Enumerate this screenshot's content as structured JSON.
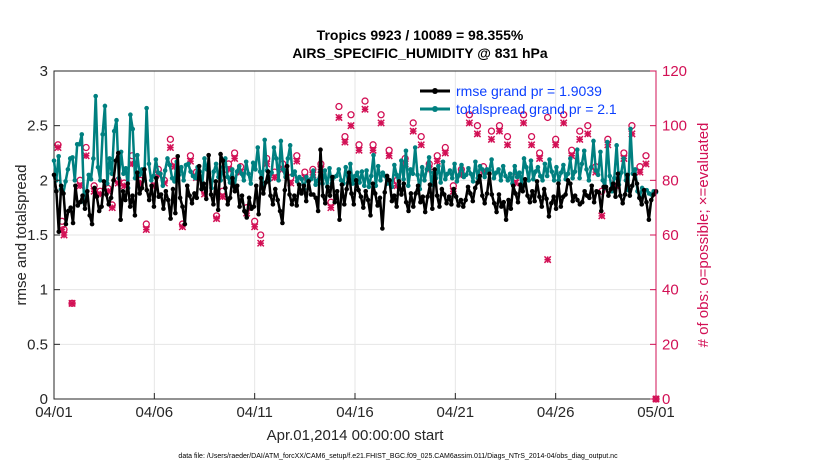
{
  "chart_data": {
    "type": "line",
    "title": "Tropics 9923 / 10089 = 98.355%",
    "subtitle": "AIRS_SPECIFIC_HUMIDITY @ 831 hPa",
    "xlabel": "Apr.01,2014 00:00:00 start",
    "ylabel": "rmse and totalspread",
    "ylabel_right": "# of obs: o=possible; ×=evaluated",
    "footer": "data file: /Users/raeder/DAI/ATM_forcXX/CAM6_setup/f.e21.FHIST_BGC.f09_025.CAM6assim.011/Diags_NTrS_2014-04/obs_diag_output.nc",
    "xlim": [
      0,
      30
    ],
    "ylim": [
      0,
      3
    ],
    "ylim_right": [
      0,
      120
    ],
    "x_ticks": [
      0,
      5,
      10,
      15,
      20,
      25,
      30
    ],
    "x_tick_labels": [
      "04/01",
      "04/06",
      "04/11",
      "04/16",
      "04/21",
      "04/26",
      "05/01"
    ],
    "y_ticks": [
      0,
      0.5,
      1,
      1.5,
      2,
      2.5,
      3
    ],
    "y_tick_labels": [
      "0",
      "0.5",
      "1",
      "1.5",
      "2",
      "2.5",
      "3"
    ],
    "y_ticks_right": [
      0,
      20,
      40,
      60,
      80,
      100,
      120
    ],
    "y_tick_labels_right": [
      "0",
      "20",
      "40",
      "60",
      "80",
      "100",
      "120"
    ],
    "legend_position": "top-right",
    "grid": true,
    "colors": {
      "rmse": "#000000",
      "spread": "#008080",
      "obs": "#d21055",
      "legend_text": "#0b3fff"
    },
    "series": [
      {
        "name": "rmse grand pr = 1.9039",
        "color": "#000000",
        "values": [
          2.05,
          1.9,
          1.53,
          1.95,
          1.88,
          1.6,
          1.72,
          1.75,
          1.61,
          1.95,
          1.77,
          1.8,
          1.86,
          1.74,
          1.9,
          1.68,
          1.6,
          1.93,
          1.85,
          1.72,
          1.76,
          1.99,
          1.87,
          1.78,
          1.84,
          2.0,
          2.18,
          2.25,
          1.64,
          1.9,
          1.82,
          1.97,
          1.76,
          1.86,
          1.68,
          2.07,
          1.88,
          1.93,
          2.1,
          1.91,
          1.82,
          1.95,
          1.76,
          2.02,
          1.85,
          1.87,
          1.74,
          1.9,
          1.82,
          1.65,
          1.92,
          1.7,
          2.22,
          1.84,
          1.76,
          1.6,
          1.95,
          1.86,
          1.79,
          1.88,
          1.84,
          2.13,
          1.92,
          1.97,
          1.83,
          2.23,
          1.87,
          1.78,
          1.99,
          1.73,
          2.24,
          2.18,
          1.93,
          1.78,
          1.84,
          2.02,
          1.9,
          1.95,
          1.76,
          1.86,
          1.72,
          1.66,
          1.84,
          1.74,
          1.76,
          1.95,
          1.69,
          2.02,
          1.88,
          1.98,
          2.08,
          1.86,
          1.78,
          1.92,
          1.82,
          1.72,
          1.61,
          1.91,
          2.13,
          1.87,
          1.78,
          1.86,
          1.77,
          1.96,
          1.88,
          1.95,
          1.81,
          1.99,
          1.87,
          1.87,
          1.84,
          1.72,
          2.28,
          1.86,
          1.79,
          1.94,
          1.86,
          2.03,
          1.8,
          1.9,
          1.64,
          1.96,
          1.78,
          1.92,
          2.07,
          1.88,
          1.78,
          2.0,
          1.91,
          1.85,
          1.75,
          1.9,
          1.82,
          1.68,
          1.97,
          1.88,
          1.77,
          1.84,
          1.56,
          1.89,
          2.04,
          2.0,
          1.81,
          1.86,
          1.76,
          1.99,
          1.87,
          1.97,
          1.8,
          1.72,
          1.88,
          1.76,
          1.88,
          1.95,
          1.8,
          1.85,
          1.71,
          1.85,
          1.96,
          1.74,
          2.1,
          1.86,
          1.76,
          1.92,
          1.87,
          1.79,
          1.85,
          1.78,
          1.92,
          1.85,
          1.77,
          1.82,
          1.76,
          1.82,
          1.94,
          1.88,
          1.81,
          1.93,
          1.98,
          2.04,
          1.86,
          1.79,
          1.88,
          2.06,
          1.87,
          1.79,
          1.71,
          1.87,
          1.76,
          1.8,
          1.64,
          1.82,
          1.74,
          1.95,
          1.88,
          1.8,
          1.96,
          1.9,
          2.01,
          1.86,
          1.8,
          1.9,
          1.81,
          1.99,
          1.85,
          1.76,
          1.92,
          1.83,
          1.67,
          1.79,
          1.85,
          1.74,
          1.97,
          1.76,
          1.85,
          1.87,
          2.0,
          1.97,
          1.81,
          1.86,
          1.82,
          1.78,
          1.8,
          1.9,
          1.86,
          1.84,
          1.95,
          1.8,
          1.9,
          1.89,
          1.72,
          1.94,
          1.94,
          1.86,
          1.92,
          1.97,
          1.85,
          2.06,
          1.86,
          1.79,
          1.87,
          2.05,
          1.86,
          1.95,
          2.05,
          1.97,
          1.84,
          1.78,
          1.91,
          1.8,
          1.64,
          1.82,
          1.87,
          1.9
        ]
      },
      {
        "name": "totalspread grand pr = 2.1",
        "color": "#008080",
        "values": [
          2.18,
          2.0,
          2.22,
          1.92,
          1.88,
          1.99,
          2.1,
          2.2,
          2.21,
          2.0,
          2.33,
          2.33,
          2.42,
          1.8,
          1.89,
          2.05,
          2.01,
          2.2,
          2.77,
          2.12,
          2.0,
          2.42,
          2.68,
          1.97,
          2.2,
          2.06,
          2.45,
          2.55,
          2.02,
          2.26,
          2.06,
          2.11,
          1.93,
          2.6,
          2.47,
          2.02,
          2.23,
          2.05,
          2.1,
          2.0,
          2.66,
          2.15,
          2.0,
          2.04,
          2.19,
          2.07,
          2.06,
          1.95,
          2.09,
          2.2,
          2.14,
          2.02,
          1.99,
          2.17,
          2.05,
          2.12,
          2.0,
          2.14,
          2.15,
          2.08,
          2.04,
          2.02,
          2.12,
          2.08,
          1.96,
          2.2,
          2.1,
          2.06,
          1.93,
          2.08,
          2.15,
          2.03,
          2.0,
          2.12,
          2.2,
          2.03,
          1.98,
          2.1,
          1.94,
          2.08,
          2.13,
          2.06,
          2.0,
          2.17,
          2.06,
          1.97,
          2.16,
          2.1,
          2.3,
          2.08,
          1.95,
          2.37,
          2.09,
          2.0,
          2.07,
          2.3,
          2.2,
          2.0,
          2.36,
          2.1,
          2.03,
          2.2,
          2.32,
          2.05,
          2.08,
          1.99,
          2.03,
          2.01,
          1.92,
          2.03,
          2.0,
          2.01,
          2.09,
          1.96,
          2.0,
          2.08,
          1.97,
          2.09,
          1.94,
          2.11,
          1.97,
          2.03,
          2.04,
          2.1,
          2.0,
          1.97,
          2.12,
          1.98,
          2.15,
          1.97,
          2.04,
          2.07,
          1.98,
          2.08,
          1.95,
          2.09,
          1.94,
          2.04,
          2.23,
          1.95,
          2.13,
          2.0,
          2.07,
          2.04,
          1.97,
          2.0,
          1.94,
          2.14,
          2.05,
          1.96,
          2.18,
          2.01,
          2.27,
          1.95,
          2.1,
          2.06,
          2.3,
          2.05,
          1.92,
          2.12,
          2.0,
          2.1,
          2.21,
          1.96,
          2.07,
          2.02,
          2.13,
          1.98,
          2.17,
          2.01,
          2.06,
          2.09,
          2.02,
          2.15,
          1.99,
          2.05,
          2.14,
          2.03,
          2.05,
          2.11,
          2.06,
          1.99,
          2.17,
          2.02,
          2.13,
          2.1,
          2.03,
          2.1,
          2.09,
          2.19,
          2.02,
          2.07,
          2.1,
          2.0,
          2.13,
          2.04,
          2.0,
          2.06,
          1.97,
          2.13,
          2.03,
          2.07,
          1.96,
          2.2,
          2.12,
          2.0,
          2.18,
          2.01,
          2.08,
          2.12,
          2.04,
          2.0,
          2.15,
          2.04,
          2.19,
          2.08,
          2.0,
          2.12,
          2.0,
          2.07,
          2.14,
          2.01,
          2.06,
          2.2,
          2.02,
          2.08,
          2.28,
          2.02,
          2.15,
          2.27,
          2.1,
          2.0,
          2.12,
          2.36,
          2.09,
          2.05,
          2.26,
          2.0,
          1.93,
          2.35,
          2.04,
          1.9,
          2.02,
          2.32,
          1.96,
          2.07,
          2.2,
          2.0,
          1.91,
          2.47,
          2.06,
          2.1,
          1.9,
          1.85,
          1.93,
          1.9,
          1.91,
          1.88,
          1.87,
          1.9,
          1.89
        ]
      }
    ],
    "obs_possible": [
      [
        0.2,
        93
      ],
      [
        0.4,
        65
      ],
      [
        0.5,
        62
      ],
      [
        0.9,
        35
      ],
      [
        1.3,
        80
      ],
      [
        1.6,
        92
      ],
      [
        2.0,
        78
      ],
      [
        2.3,
        76
      ],
      [
        2.7,
        77
      ],
      [
        2.9,
        71
      ],
      [
        3.2,
        80
      ],
      [
        3.5,
        79
      ],
      [
        3.9,
        89
      ],
      [
        4.3,
        80
      ],
      [
        4.6,
        64
      ],
      [
        5.0,
        80
      ],
      [
        5.2,
        84
      ],
      [
        5.5,
        80
      ],
      [
        5.8,
        95
      ],
      [
        6.0,
        87
      ],
      [
        6.4,
        64
      ],
      [
        6.8,
        89
      ],
      [
        7.1,
        83
      ],
      [
        7.5,
        76
      ],
      [
        8.1,
        67
      ],
      [
        8.4,
        76
      ],
      [
        8.7,
        86
      ],
      [
        9.0,
        90
      ],
      [
        9.3,
        85
      ],
      [
        9.6,
        70
      ],
      [
        10.0,
        65
      ],
      [
        10.3,
        60
      ],
      [
        10.6,
        88
      ],
      [
        11.0,
        83
      ],
      [
        11.4,
        86
      ],
      [
        11.8,
        81
      ],
      [
        12.1,
        89
      ],
      [
        12.5,
        83
      ],
      [
        12.9,
        84
      ],
      [
        13.3,
        86
      ],
      [
        13.8,
        72
      ],
      [
        14.2,
        107
      ],
      [
        14.5,
        96
      ],
      [
        14.8,
        104
      ],
      [
        15.2,
        93
      ],
      [
        15.5,
        109
      ],
      [
        15.9,
        93
      ],
      [
        16.3,
        104
      ],
      [
        16.7,
        91
      ],
      [
        17.1,
        80
      ],
      [
        17.5,
        88
      ],
      [
        17.9,
        101
      ],
      [
        18.3,
        96
      ],
      [
        18.7,
        86
      ],
      [
        19.1,
        89
      ],
      [
        19.5,
        92
      ],
      [
        19.9,
        78
      ],
      [
        20.3,
        84
      ],
      [
        20.7,
        104
      ],
      [
        21.1,
        100
      ],
      [
        21.4,
        85
      ],
      [
        21.8,
        98
      ],
      [
        22.2,
        100
      ],
      [
        22.6,
        96
      ],
      [
        23.0,
        81
      ],
      [
        23.4,
        104
      ],
      [
        23.8,
        96
      ],
      [
        24.2,
        90
      ],
      [
        24.6,
        103
      ],
      [
        25.0,
        95
      ],
      [
        25.4,
        104
      ],
      [
        25.8,
        91
      ],
      [
        26.2,
        98
      ],
      [
        26.6,
        100
      ],
      [
        27.0,
        85
      ],
      [
        27.3,
        76
      ],
      [
        27.6,
        95
      ],
      [
        28.0,
        80
      ],
      [
        28.4,
        90
      ],
      [
        28.8,
        100
      ],
      [
        29.2,
        85
      ],
      [
        29.5,
        89
      ],
      [
        30.0,
        0
      ]
    ],
    "obs_evaluated": [
      [
        0.2,
        92
      ],
      [
        0.4,
        62
      ],
      [
        0.5,
        60
      ],
      [
        0.9,
        35
      ],
      [
        1.3,
        78
      ],
      [
        1.6,
        89
      ],
      [
        2.0,
        76
      ],
      [
        2.3,
        75
      ],
      [
        2.7,
        76
      ],
      [
        2.9,
        70
      ],
      [
        3.2,
        79
      ],
      [
        3.5,
        78
      ],
      [
        3.9,
        86
      ],
      [
        4.3,
        79
      ],
      [
        4.6,
        62
      ],
      [
        5.0,
        78
      ],
      [
        5.2,
        82
      ],
      [
        5.5,
        79
      ],
      [
        5.8,
        92
      ],
      [
        6.0,
        85
      ],
      [
        6.4,
        63
      ],
      [
        6.8,
        87
      ],
      [
        7.1,
        81
      ],
      [
        7.5,
        75
      ],
      [
        8.1,
        66
      ],
      [
        8.4,
        74
      ],
      [
        8.7,
        84
      ],
      [
        9.0,
        88
      ],
      [
        9.3,
        83
      ],
      [
        9.6,
        68
      ],
      [
        10.0,
        63
      ],
      [
        10.3,
        57
      ],
      [
        10.6,
        86
      ],
      [
        11.0,
        81
      ],
      [
        11.4,
        84
      ],
      [
        11.8,
        79
      ],
      [
        12.1,
        87
      ],
      [
        12.5,
        81
      ],
      [
        12.9,
        82
      ],
      [
        13.3,
        84
      ],
      [
        13.8,
        70
      ],
      [
        14.2,
        103
      ],
      [
        14.5,
        94
      ],
      [
        14.8,
        100
      ],
      [
        15.2,
        91
      ],
      [
        15.5,
        106
      ],
      [
        15.9,
        91
      ],
      [
        16.3,
        101
      ],
      [
        16.7,
        89
      ],
      [
        17.1,
        78
      ],
      [
        17.5,
        86
      ],
      [
        17.9,
        98
      ],
      [
        18.3,
        93
      ],
      [
        18.7,
        84
      ],
      [
        19.1,
        87
      ],
      [
        19.5,
        90
      ],
      [
        19.9,
        76
      ],
      [
        20.3,
        82
      ],
      [
        20.7,
        101
      ],
      [
        21.1,
        97
      ],
      [
        21.4,
        83
      ],
      [
        21.8,
        95
      ],
      [
        22.2,
        98
      ],
      [
        22.6,
        93
      ],
      [
        23.0,
        79
      ],
      [
        23.4,
        101
      ],
      [
        23.8,
        93
      ],
      [
        24.2,
        88
      ],
      [
        24.6,
        51
      ],
      [
        25.0,
        93
      ],
      [
        25.4,
        101
      ],
      [
        25.8,
        89
      ],
      [
        26.2,
        95
      ],
      [
        26.6,
        97
      ],
      [
        27.0,
        83
      ],
      [
        27.3,
        67
      ],
      [
        27.6,
        93
      ],
      [
        28.0,
        78
      ],
      [
        28.4,
        88
      ],
      [
        28.8,
        97
      ],
      [
        29.2,
        83
      ],
      [
        29.5,
        86
      ],
      [
        30.0,
        0
      ]
    ]
  }
}
